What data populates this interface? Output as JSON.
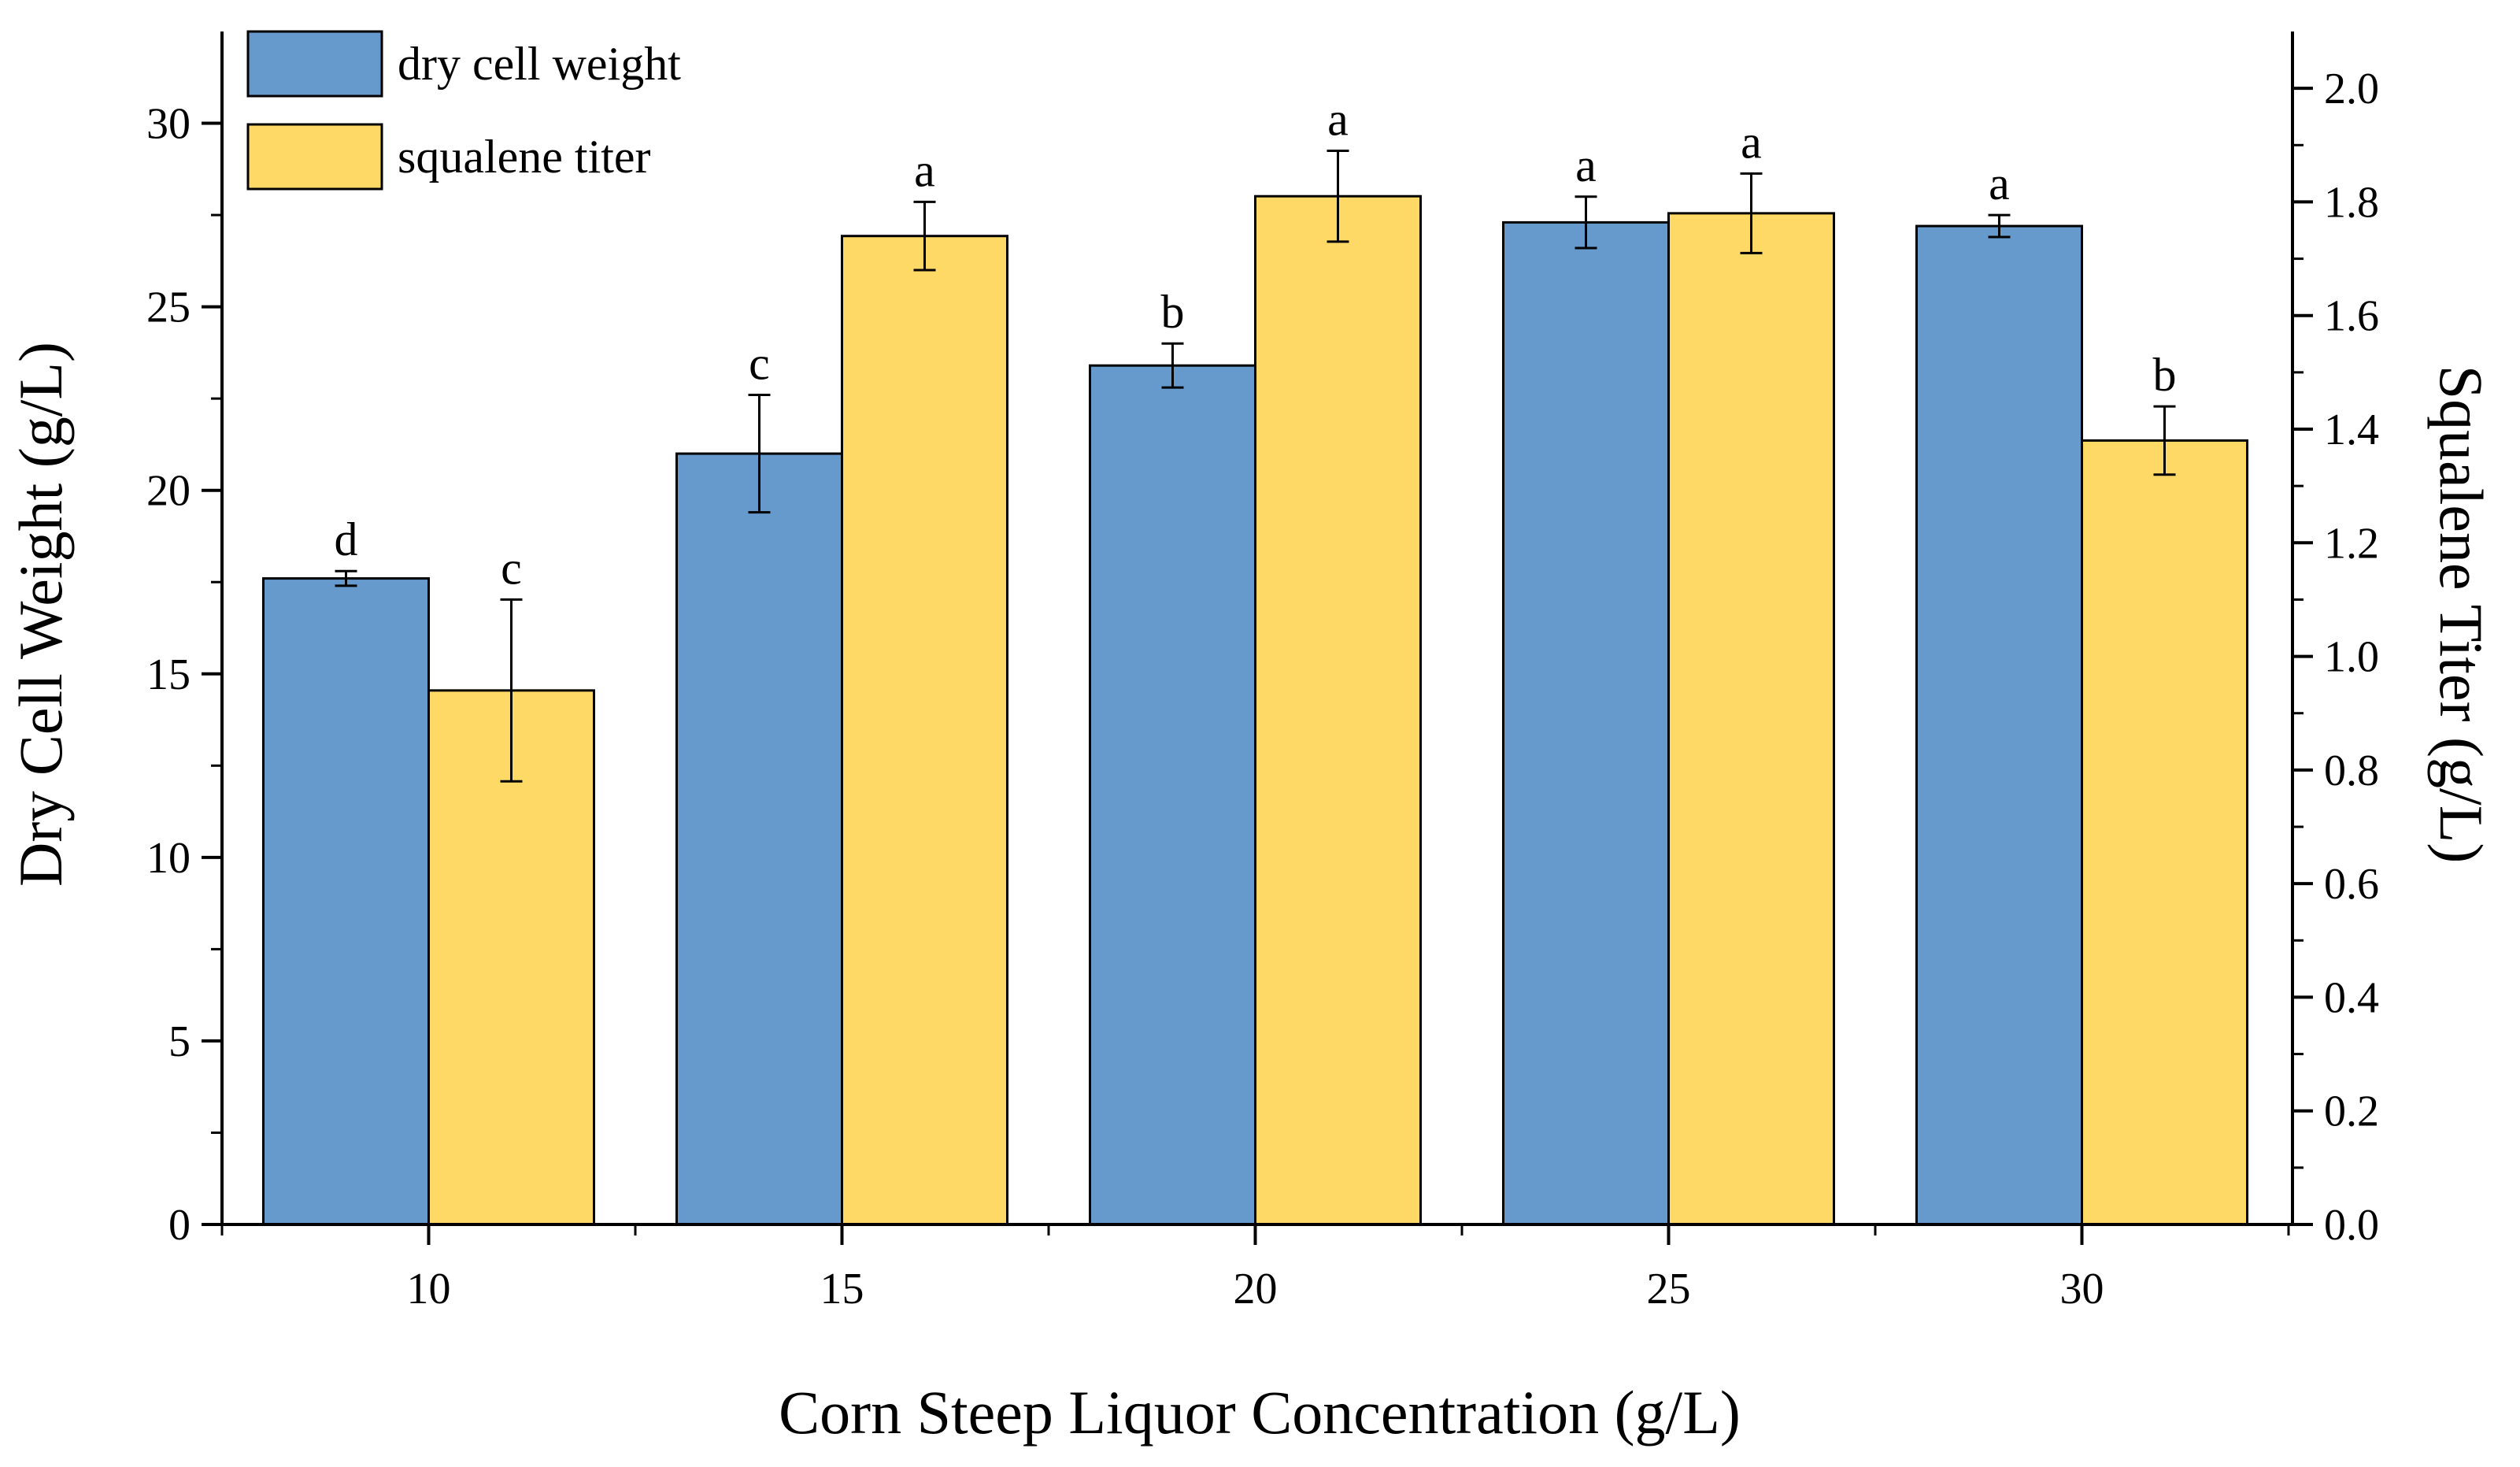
{
  "chart_data": {
    "type": "bar",
    "categories": [
      "10",
      "15",
      "20",
      "25",
      "30"
    ],
    "xlabel": "Corn Steep Liquor Concentration (g/L)",
    "ylabel": "Dry Cell Weight (g/L)",
    "y2label": "Squalene Titer (g/L)",
    "ylim": [
      0,
      32.5
    ],
    "y2lim": [
      0,
      2.1
    ],
    "yticks": [
      "0",
      "5",
      "10",
      "15",
      "20",
      "25",
      "30"
    ],
    "y2ticks": [
      "0.0",
      "0.2",
      "0.4",
      "0.6",
      "0.8",
      "1.0",
      "1.2",
      "1.4",
      "1.6",
      "1.8",
      "2.0"
    ],
    "legend_position": "top-left",
    "series": [
      {
        "name": "dry cell weight",
        "axis": "left",
        "color": "#6699cc",
        "values": [
          17.6,
          21.0,
          23.4,
          27.3,
          27.2
        ],
        "errors": [
          0.2,
          1.6,
          0.6,
          0.7,
          0.3
        ],
        "labels": [
          "d",
          "c",
          "b",
          "a",
          "a"
        ]
      },
      {
        "name": "squalene titer",
        "axis": "right",
        "color": "#ffd966",
        "values": [
          0.94,
          1.74,
          1.81,
          1.78,
          1.38
        ],
        "errors": [
          0.16,
          0.06,
          0.08,
          0.07,
          0.06
        ],
        "labels": [
          "c",
          "a",
          "a",
          "a",
          "b"
        ]
      }
    ]
  }
}
